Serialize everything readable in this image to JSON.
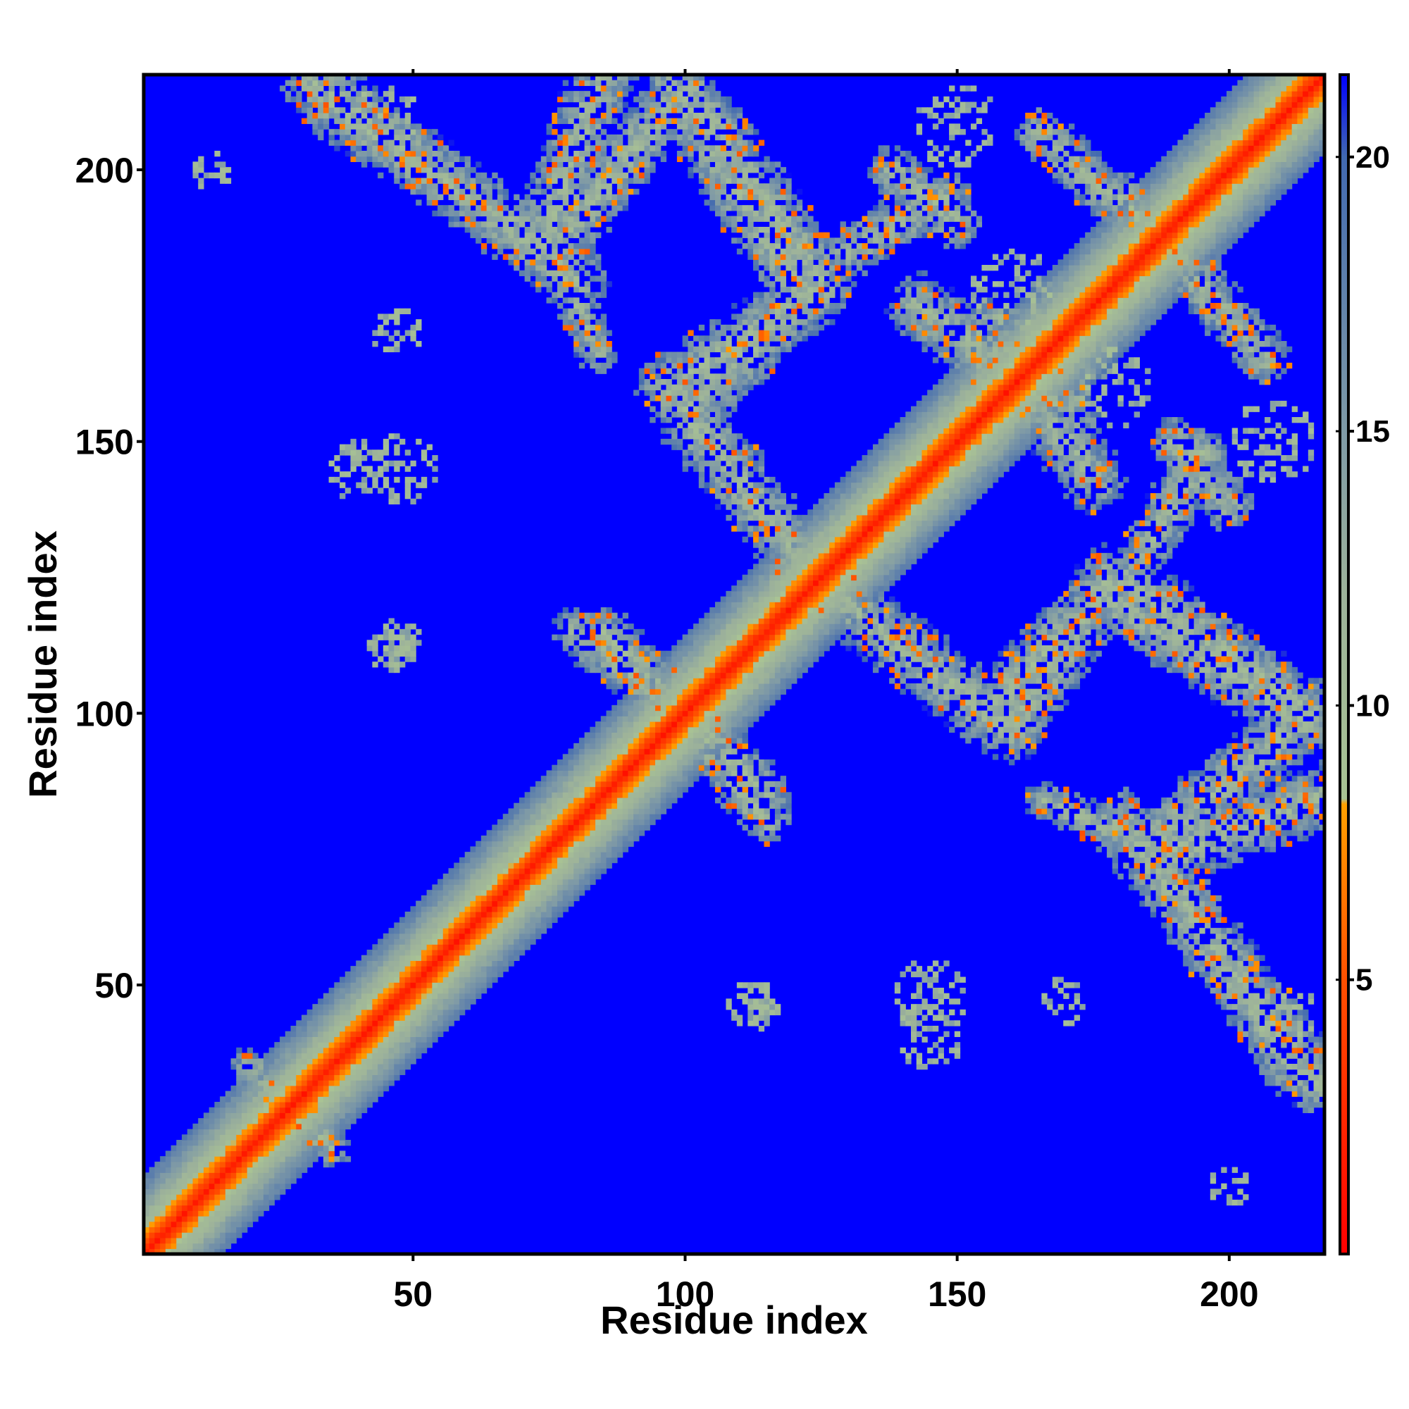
{
  "chart_data": {
    "type": "heatmap",
    "title": "",
    "xlabel": "Residue index",
    "ylabel": "Residue index",
    "n_residues": 217,
    "xlim": [
      1,
      217
    ],
    "ylim": [
      1,
      217
    ],
    "x_ticks": [
      50,
      100,
      150,
      200
    ],
    "y_ticks": [
      50,
      100,
      150,
      200
    ],
    "colorbar": {
      "ticks": [
        5,
        10,
        15,
        20
      ],
      "range": [
        0,
        21.5
      ],
      "stops": [
        {
          "value": 0,
          "color": "#ff0000"
        },
        {
          "value": 5,
          "color": "#ff5000"
        },
        {
          "value": 8.2,
          "color": "#ffa000"
        },
        {
          "value": 8.3,
          "color": "#a9c394"
        },
        {
          "value": 12,
          "color": "#9db29a"
        },
        {
          "value": 15,
          "color": "#7f9aa6"
        },
        {
          "value": 20,
          "color": "#4169b0"
        },
        {
          "value": 21.5,
          "color": "#0000ff"
        }
      ],
      "background_color": "#0000ff",
      "background_value": 21.5
    },
    "diagonal_band": {
      "core_half_width": 4,
      "band_half_width": 14
    },
    "contact_segments": [
      {
        "name": "b1",
        "from": [
          32,
          216
        ],
        "to": [
          80,
          180
        ],
        "width": 10
      },
      {
        "name": "b2",
        "from": [
          85,
          218
        ],
        "to": [
          73,
          185
        ],
        "width": 10
      },
      {
        "name": "b3",
        "from": [
          98,
          215
        ],
        "to": [
          120,
          180
        ],
        "width": 10
      },
      {
        "name": "b4",
        "from": [
          125,
          178
        ],
        "to": [
          97,
          160
        ],
        "width": 10
      },
      {
        "name": "b5",
        "from": [
          97,
          160
        ],
        "to": [
          120,
          130
        ],
        "width": 10
      },
      {
        "name": "b6",
        "from": [
          165,
          207
        ],
        "to": [
          195,
          180
        ],
        "width": 8
      },
      {
        "name": "b7",
        "from": [
          138,
          200
        ],
        "to": [
          150,
          190
        ],
        "width": 8
      },
      {
        "name": "b8",
        "from": [
          143,
          175
        ],
        "to": [
          170,
          155
        ],
        "width": 10
      },
      {
        "name": "b9",
        "from": [
          130,
          120
        ],
        "to": [
          155,
          100
        ],
        "width": 10
      },
      {
        "name": "b10",
        "from": [
          155,
          100
        ],
        "to": [
          180,
          125
        ],
        "width": 10
      },
      {
        "name": "b11",
        "from": [
          180,
          125
        ],
        "to": [
          215,
          100
        ],
        "width": 10
      },
      {
        "name": "b12",
        "from": [
          195,
          148
        ],
        "to": [
          185,
          130
        ],
        "width": 8
      },
      {
        "name": "b13",
        "from": [
          215,
          100
        ],
        "to": [
          185,
          75
        ],
        "width": 10
      },
      {
        "name": "b14",
        "from": [
          185,
          75
        ],
        "to": [
          212,
          35
        ],
        "width": 10
      },
      {
        "name": "b15",
        "from": [
          166,
          84
        ],
        "to": [
          180,
          78
        ],
        "width": 6
      },
      {
        "name": "b16",
        "from": [
          85,
          115
        ],
        "to": [
          100,
          100
        ],
        "width": 8
      },
      {
        "name": "b17",
        "from": [
          100,
          100
        ],
        "to": [
          115,
          80
        ],
        "width": 8
      },
      {
        "name": "b18",
        "from": [
          20,
          35
        ],
        "to": [
          35,
          20
        ],
        "width": 6
      }
    ],
    "sparse_patches": [
      {
        "center": [
          48,
          145
        ],
        "radius": 7
      },
      {
        "center": [
          47,
          113
        ],
        "radius": 5
      },
      {
        "center": [
          112,
          46
        ],
        "radius": 5
      },
      {
        "center": [
          145,
          40
        ],
        "radius": 6
      },
      {
        "center": [
          170,
          47
        ],
        "radius": 5
      },
      {
        "center": [
          200,
          13
        ],
        "radius": 4
      },
      {
        "center": [
          45,
          210
        ],
        "radius": 6
      },
      {
        "center": [
          210,
          210
        ],
        "radius": 5
      },
      {
        "center": [
          208,
          150
        ],
        "radius": 8
      },
      {
        "center": [
          178,
          160
        ],
        "radius": 8
      }
    ]
  }
}
